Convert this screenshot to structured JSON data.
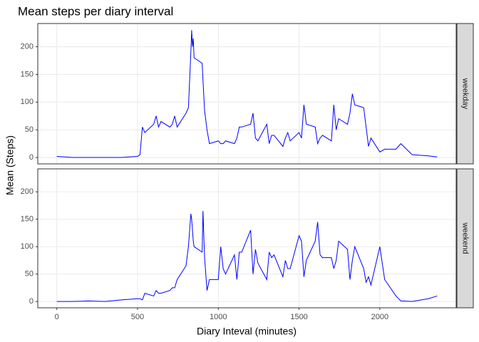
{
  "chart_data": {
    "type": "line",
    "title": "Mean steps per diary interval",
    "x_label": "Diary Inteval (minutes)",
    "y_label": "Mean (Steps)",
    "facets": true,
    "grid": true,
    "x": [
      0,
      100,
      200,
      300,
      400,
      500,
      515,
      530,
      545,
      600,
      615,
      630,
      645,
      700,
      715,
      730,
      745,
      800,
      815,
      830,
      835,
      840,
      845,
      850,
      900,
      905,
      915,
      930,
      945,
      1000,
      1015,
      1030,
      1045,
      1100,
      1115,
      1130,
      1145,
      1200,
      1215,
      1230,
      1245,
      1300,
      1315,
      1330,
      1345,
      1400,
      1415,
      1430,
      1445,
      1500,
      1515,
      1530,
      1545,
      1600,
      1615,
      1630,
      1645,
      1700,
      1715,
      1730,
      1745,
      1800,
      1815,
      1830,
      1845,
      1900,
      1915,
      1930,
      1945,
      2000,
      2030,
      2100,
      2130,
      2200,
      2300,
      2355
    ],
    "series": [
      {
        "name": "weekday",
        "color": "#0000ff",
        "values": [
          2,
          0,
          0,
          0,
          0,
          2,
          5,
          55,
          45,
          60,
          75,
          55,
          65,
          55,
          60,
          75,
          55,
          80,
          90,
          190,
          230,
          200,
          215,
          180,
          170,
          140,
          85,
          50,
          25,
          30,
          25,
          25,
          30,
          25,
          35,
          55,
          55,
          60,
          80,
          35,
          30,
          60,
          25,
          40,
          40,
          20,
          35,
          45,
          30,
          45,
          35,
          95,
          60,
          55,
          25,
          35,
          40,
          30,
          95,
          50,
          70,
          60,
          80,
          115,
          95,
          90,
          55,
          20,
          35,
          10,
          15,
          15,
          25,
          5,
          3,
          1
        ]
      },
      {
        "name": "weekend",
        "color": "#0000ff",
        "values": [
          0,
          0,
          1,
          0,
          3,
          5,
          5,
          3,
          15,
          10,
          20,
          15,
          15,
          20,
          25,
          25,
          40,
          65,
          100,
          160,
          150,
          130,
          110,
          100,
          90,
          165,
          80,
          20,
          40,
          40,
          100,
          60,
          50,
          85,
          40,
          90,
          90,
          130,
          50,
          95,
          70,
          40,
          90,
          80,
          85,
          45,
          75,
          60,
          60,
          120,
          110,
          45,
          75,
          110,
          145,
          85,
          80,
          80,
          60,
          75,
          110,
          95,
          40,
          75,
          100,
          60,
          35,
          45,
          30,
          100,
          40,
          10,
          1,
          0,
          5,
          10
        ]
      }
    ],
    "xlim": [
      -117.75,
      2472.75
    ],
    "xticks": [
      0,
      500,
      1000,
      1500,
      2000
    ],
    "ylim": [
      -11.52,
      241.9
    ],
    "yticks": [
      0,
      50,
      100,
      150,
      200
    ]
  }
}
